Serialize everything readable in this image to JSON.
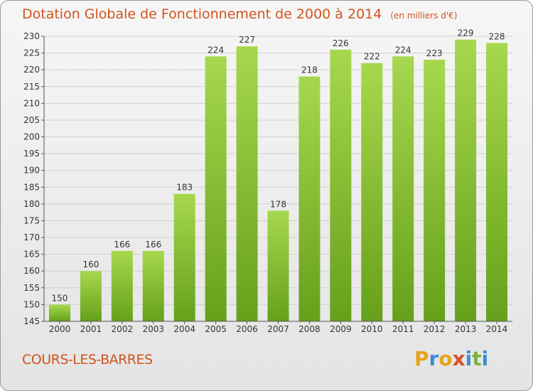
{
  "header": {
    "title": "Dotation Globale de Fonctionnement de 2000 à 2014",
    "unit": "(en milliers d'€)"
  },
  "footer": {
    "place": "COURS-LES-BARRES",
    "logo_letters": [
      "P",
      "r",
      "o",
      "x",
      "i",
      "t",
      "i"
    ],
    "logo_colors": [
      "#e8a21a",
      "#3b8fd6",
      "#e8a21a",
      "#d94f2a",
      "#3b8fd6",
      "#7ab33a",
      "#3b8fd6"
    ]
  },
  "colors": {
    "bar_light": "#a6d84e",
    "bar_dark": "#66a01a",
    "grid": "#d0d0d0",
    "axis": "#555555",
    "text": "#333333"
  },
  "chart_data": {
    "type": "bar",
    "categories": [
      "2000",
      "2001",
      "2002",
      "2003",
      "2004",
      "2005",
      "2006",
      "2007",
      "2008",
      "2009",
      "2010",
      "2011",
      "2012",
      "2013",
      "2014"
    ],
    "values": [
      150,
      160,
      166,
      166,
      183,
      224,
      227,
      178,
      218,
      226,
      222,
      224,
      223,
      229,
      228
    ],
    "title": "Dotation Globale de Fonctionnement de 2000 à 2014",
    "subtitle": "(en milliers d'€)",
    "xlabel": "",
    "ylabel": "",
    "ylim": [
      145,
      230
    ],
    "yticks": [
      145,
      150,
      155,
      160,
      165,
      170,
      175,
      180,
      185,
      190,
      195,
      200,
      205,
      210,
      215,
      220,
      225,
      230
    ],
    "grid": true,
    "data_labels": true
  }
}
